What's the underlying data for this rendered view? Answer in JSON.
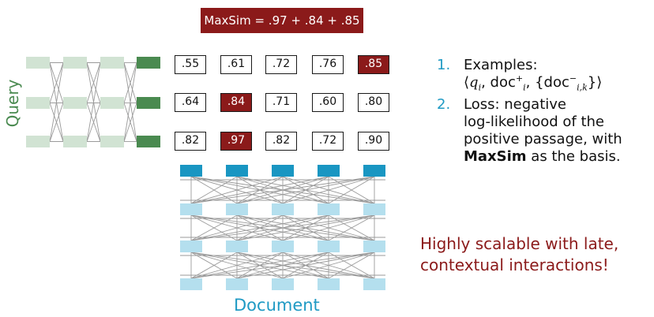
{
  "banner": {
    "text": "MaxSim = .97 + .84 + .85"
  },
  "query_label": "Query",
  "document_label": "Document",
  "score_matrix": [
    [
      ".55",
      ".61",
      ".72",
      ".76",
      ".85"
    ],
    [
      ".64",
      ".84",
      ".71",
      ".60",
      ".80"
    ],
    [
      ".82",
      ".97",
      ".82",
      ".72",
      ".90"
    ]
  ],
  "highlighted_cells": [
    [
      0,
      4
    ],
    [
      1,
      1
    ],
    [
      2,
      1
    ]
  ],
  "steps": [
    {
      "number": "1.",
      "line1": "Examples:",
      "line2_prefix": "⟨",
      "line2_q": "q",
      "line2_q_sub": "i",
      "line2_doc": ", doc",
      "line2_doc_sup": "+",
      "line2_doc_sub": "i",
      "line2_set": ", {doc",
      "line2_set_sup": "−",
      "line2_set_sub": "i,k",
      "line2_suffix": "}⟩"
    },
    {
      "number": "2.",
      "line1": "Loss: negative",
      "line2": "log-likelihood of the",
      "line3": "positive passage, with",
      "line4_bold": "MaxSim",
      "line4_rest": " as the basis."
    }
  ],
  "tagline": {
    "line1": "Highly scalable with late,",
    "line2": "contextual interactions!"
  },
  "colors": {
    "max_red": "#8b1a1a",
    "query_dark": "#4a8a50",
    "query_light": "#d1e3d3",
    "doc_dark": "#1996c2",
    "doc_light": "#b4dfee",
    "step_number": "#1f9ac4"
  }
}
